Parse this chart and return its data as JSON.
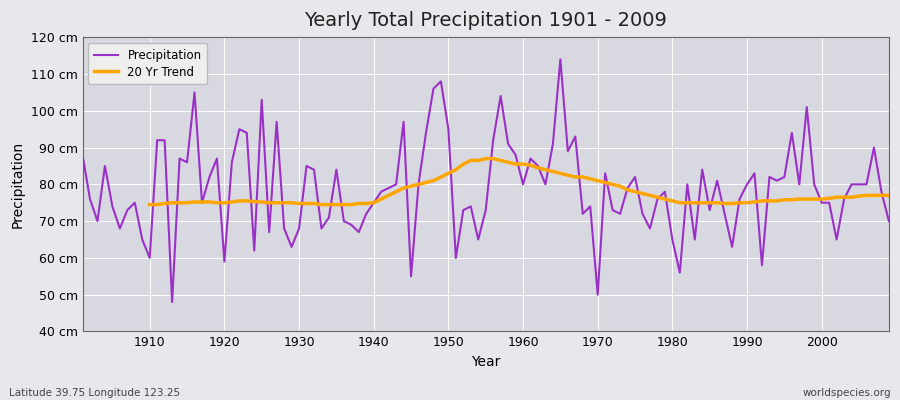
{
  "title": "Yearly Total Precipitation 1901 - 2009",
  "xlabel": "Year",
  "ylabel": "Precipitation",
  "subtitle": "Latitude 39.75 Longitude 123.25",
  "watermark": "worldspecies.org",
  "ylim": [
    40,
    120
  ],
  "yticks": [
    40,
    50,
    60,
    70,
    80,
    90,
    100,
    110,
    120
  ],
  "ytick_labels": [
    "40 cm",
    "50 cm",
    "60 cm",
    "70 cm",
    "80 cm",
    "90 cm",
    "100 cm",
    "110 cm",
    "120 cm"
  ],
  "precip_color": "#9B30C8",
  "trend_color": "#FFA500",
  "bg_color": "#E8E8EC",
  "plot_bg_color": "#D8D8E0",
  "grid_color": "#FFFFFF",
  "years": [
    1901,
    1902,
    1903,
    1904,
    1905,
    1906,
    1907,
    1908,
    1909,
    1910,
    1911,
    1912,
    1913,
    1914,
    1915,
    1916,
    1917,
    1918,
    1919,
    1920,
    1921,
    1922,
    1923,
    1924,
    1925,
    1926,
    1927,
    1928,
    1929,
    1930,
    1931,
    1932,
    1933,
    1934,
    1935,
    1936,
    1937,
    1938,
    1939,
    1940,
    1941,
    1942,
    1943,
    1944,
    1945,
    1946,
    1947,
    1948,
    1949,
    1950,
    1951,
    1952,
    1953,
    1954,
    1955,
    1956,
    1957,
    1958,
    1959,
    1960,
    1961,
    1962,
    1963,
    1964,
    1965,
    1966,
    1967,
    1968,
    1969,
    1970,
    1971,
    1972,
    1973,
    1974,
    1975,
    1976,
    1977,
    1978,
    1979,
    1980,
    1981,
    1982,
    1983,
    1984,
    1985,
    1986,
    1987,
    1988,
    1989,
    1990,
    1991,
    1992,
    1993,
    1994,
    1995,
    1996,
    1997,
    1998,
    1999,
    2000,
    2001,
    2002,
    2003,
    2004,
    2005,
    2006,
    2007,
    2008,
    2009
  ],
  "precipitation": [
    88,
    76,
    70,
    85,
    74,
    68,
    73,
    75,
    65,
    60,
    92,
    92,
    48,
    87,
    86,
    105,
    75,
    82,
    87,
    59,
    86,
    95,
    94,
    62,
    103,
    67,
    97,
    68,
    63,
    68,
    85,
    84,
    68,
    71,
    84,
    70,
    69,
    67,
    72,
    75,
    78,
    79,
    80,
    97,
    55,
    80,
    94,
    106,
    108,
    95,
    60,
    73,
    74,
    65,
    73,
    92,
    104,
    91,
    88,
    80,
    87,
    85,
    80,
    91,
    114,
    89,
    93,
    72,
    74,
    50,
    83,
    73,
    72,
    79,
    82,
    72,
    68,
    76,
    78,
    65,
    56,
    80,
    65,
    84,
    73,
    81,
    72,
    63,
    76,
    80,
    83,
    58,
    82,
    81,
    82,
    94,
    80,
    101,
    80,
    75,
    75,
    65,
    76,
    80,
    80,
    80,
    90,
    78,
    70
  ],
  "trend": [
    null,
    null,
    null,
    null,
    null,
    null,
    null,
    null,
    null,
    74.5,
    74.5,
    74.8,
    75.0,
    75.0,
    75.0,
    75.2,
    75.2,
    75.2,
    75.0,
    75.0,
    75.2,
    75.5,
    75.5,
    75.3,
    75.2,
    75.0,
    75.0,
    75.0,
    75.0,
    74.8,
    74.8,
    74.8,
    74.5,
    74.5,
    74.5,
    74.5,
    74.5,
    74.8,
    74.8,
    75.0,
    76.0,
    77.0,
    78.0,
    79.0,
    79.5,
    80.0,
    80.5,
    81.0,
    82.0,
    83.0,
    84.0,
    85.5,
    86.5,
    86.5,
    87.0,
    87.0,
    86.5,
    86.0,
    85.5,
    85.5,
    85.2,
    84.5,
    84.0,
    83.5,
    83.0,
    82.5,
    82.0,
    82.0,
    81.5,
    81.0,
    80.5,
    80.0,
    79.5,
    78.5,
    78.0,
    77.5,
    77.0,
    76.5,
    76.0,
    75.5,
    75.0,
    75.0,
    75.0,
    75.0,
    75.0,
    75.0,
    74.8,
    74.8,
    75.0,
    75.0,
    75.2,
    75.5,
    75.5,
    75.5,
    75.8,
    75.8,
    76.0,
    76.0,
    76.0,
    76.0,
    76.2,
    76.5,
    76.5,
    76.5,
    76.8,
    77.0,
    77.0,
    77.0,
    77.0
  ]
}
